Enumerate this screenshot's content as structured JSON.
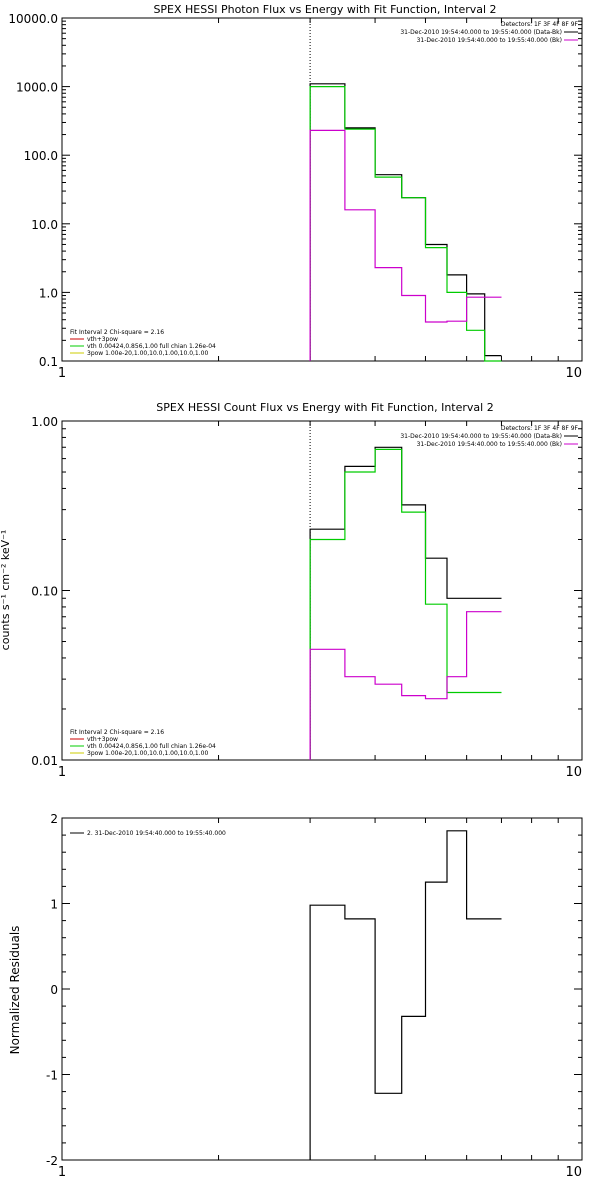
{
  "chart_data": [
    {
      "type": "line",
      "title": "SPEX HESSI Photon Flux vs Energy with Fit Function, Interval 2",
      "xlabel": "",
      "ylabel": "",
      "xscale": "log",
      "yscale": "log",
      "xlim": [
        1,
        10
      ],
      "ylim": [
        0.1,
        10000
      ],
      "xticks": [
        "1",
        "10"
      ],
      "yticks": [
        "0.1",
        "1.0",
        "10.0",
        "100.0",
        "1000.0",
        "10000.0"
      ],
      "energy_edges": [
        3.0,
        3.5,
        4.0,
        4.5,
        5.0,
        5.5,
        6.0,
        6.5,
        7.0
      ],
      "vline_x": 3.0,
      "detectors": "Detectors: 1F 3F 4F 8F 9F",
      "legend_top": [
        {
          "label": "31-Dec-2010 19:54:40.000 to 19:55:40.000 (Data-Bk)",
          "color": "#000000"
        },
        {
          "label": "31-Dec-2010 19:54:40.000 to 19:55:40.000 (Bk)",
          "color": "#cc00cc"
        }
      ],
      "fit_info": "Fit Interval 2   Chi-square = 2.16",
      "legend_bottom": [
        {
          "label": "vth+3pow",
          "color": "#cc0000"
        },
        {
          "label": "vth 0.00424,0.856,1.00  full chian 1.26e-04",
          "color": "#00cc00"
        },
        {
          "label": "3pow 1.00e-20,1.00,10.0,1.00,10.0,1.00",
          "color": "#cccc00"
        }
      ],
      "series": [
        {
          "name": "Data-Bk",
          "color": "#000000",
          "values": [
            1100,
            250,
            52,
            24,
            5.0,
            1.8,
            0.95,
            0.12
          ]
        },
        {
          "name": "vth+3pow",
          "color": "#00cc00",
          "values": [
            1000,
            240,
            48,
            24,
            4.5,
            1.0,
            0.28,
            0.1
          ]
        },
        {
          "name": "Bk",
          "color": "#cc00cc",
          "values": [
            230,
            16,
            2.3,
            0.9,
            0.37,
            0.38,
            0.85,
            0.85
          ]
        }
      ]
    },
    {
      "type": "line",
      "title": "SPEX HESSI Count Flux vs Energy with Fit Function, Interval 2",
      "xlabel": "",
      "ylabel": "counts s⁻¹ cm⁻² keV⁻¹",
      "xscale": "log",
      "yscale": "log",
      "xlim": [
        1,
        10
      ],
      "ylim": [
        0.01,
        1.0
      ],
      "xticks": [
        "1",
        "10"
      ],
      "yticks": [
        "0.01",
        "0.10",
        "1.00"
      ],
      "energy_edges": [
        3.0,
        3.5,
        4.0,
        4.5,
        5.0,
        5.5,
        6.0,
        6.5,
        7.0
      ],
      "vline_x": 3.0,
      "detectors": "Detectors: 1F 3F 4F 8F 9F",
      "legend_top": [
        {
          "label": "31-Dec-2010 19:54:40.000 to 19:55:40.000 (Data-Bk)",
          "color": "#000000"
        },
        {
          "label": "31-Dec-2010 19:54:40.000 to 19:55:40.000 (Bk)",
          "color": "#cc00cc"
        }
      ],
      "fit_info": "Fit Interval 2   Chi-square = 2.16",
      "legend_bottom": [
        {
          "label": "vth+3pow",
          "color": "#cc0000"
        },
        {
          "label": "vth 0.00424,0.856,1.00  full chian 1.26e-04",
          "color": "#00cc00"
        },
        {
          "label": "3pow 1.00e-20,1.00,10.0,1.00,10.0,1.00",
          "color": "#cccc00"
        }
      ],
      "series": [
        {
          "name": "Data-Bk",
          "color": "#000000",
          "values": [
            0.23,
            0.54,
            0.7,
            0.32,
            0.155,
            0.09,
            0.09,
            0.09
          ]
        },
        {
          "name": "vth+3pow",
          "color": "#00cc00",
          "values": [
            0.2,
            0.5,
            0.68,
            0.29,
            0.083,
            0.025,
            0.025,
            0.025
          ]
        },
        {
          "name": "Bk",
          "color": "#cc00cc",
          "values": [
            0.045,
            0.031,
            0.028,
            0.024,
            0.023,
            0.031,
            0.075,
            0.075
          ]
        }
      ]
    },
    {
      "type": "line",
      "title": "",
      "xlabel": "",
      "ylabel": "Normalized Residuals",
      "xscale": "log",
      "yscale": "linear",
      "xlim": [
        1,
        10
      ],
      "ylim": [
        -2,
        2
      ],
      "xticks": [
        "1",
        "10"
      ],
      "yticks": [
        "-2",
        "-1",
        "0",
        "1",
        "2"
      ],
      "energy_edges": [
        3.0,
        3.5,
        4.0,
        4.5,
        5.0,
        5.5,
        6.0,
        6.5,
        7.0
      ],
      "legend_top": [
        {
          "label": "2. 31-Dec-2010 19:54:40.000 to 19:55:40.000",
          "color": "#000000"
        }
      ],
      "series": [
        {
          "name": "2. 31-Dec-2010 19:54:40.000 to 19:55:40.000",
          "color": "#000000",
          "values": [
            0.98,
            0.82,
            -1.22,
            -0.32,
            1.25,
            1.85,
            0.82,
            0.82
          ]
        }
      ]
    }
  ]
}
